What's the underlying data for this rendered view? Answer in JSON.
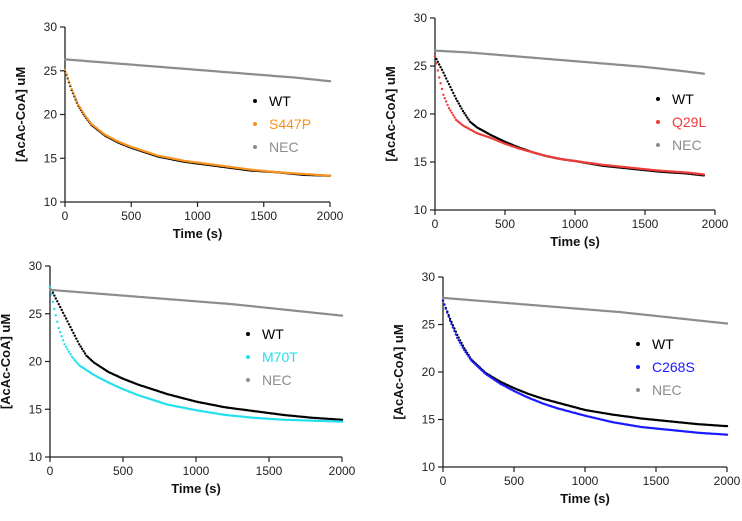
{
  "chart_data": [
    {
      "type": "scatter",
      "xlabel": "Time (s)",
      "ylabel": "[AcAc-CoA] uM",
      "xlim": [
        0,
        2000
      ],
      "ylim": [
        10,
        30
      ],
      "xticks": [
        0,
        500,
        1000,
        1500,
        2000
      ],
      "yticks": [
        10,
        15,
        20,
        25,
        30
      ],
      "legend": "right",
      "series": [
        {
          "name": "WT",
          "color": "#000000",
          "points": [
            [
              0,
              25.0
            ],
            [
              50,
              22.8
            ],
            [
              100,
              21.0
            ],
            [
              150,
              19.8
            ],
            [
              200,
              18.8
            ],
            [
              300,
              17.6
            ],
            [
              400,
              16.8
            ],
            [
              500,
              16.2
            ],
            [
              600,
              15.7
            ],
            [
              700,
              15.2
            ],
            [
              800,
              14.9
            ],
            [
              900,
              14.6
            ],
            [
              1000,
              14.4
            ],
            [
              1200,
              14.0
            ],
            [
              1400,
              13.6
            ],
            [
              1600,
              13.4
            ],
            [
              1800,
              13.1
            ],
            [
              2000,
              13.0
            ]
          ]
        },
        {
          "name": "S447P",
          "color": "#f7931e",
          "points": [
            [
              0,
              25.1
            ],
            [
              50,
              22.9
            ],
            [
              100,
              21.1
            ],
            [
              150,
              19.9
            ],
            [
              200,
              18.9
            ],
            [
              300,
              17.7
            ],
            [
              400,
              16.9
            ],
            [
              500,
              16.3
            ],
            [
              600,
              15.8
            ],
            [
              700,
              15.3
            ],
            [
              800,
              15.0
            ],
            [
              900,
              14.7
            ],
            [
              1000,
              14.5
            ],
            [
              1200,
              14.1
            ],
            [
              1400,
              13.7
            ],
            [
              1600,
              13.4
            ],
            [
              1800,
              13.2
            ],
            [
              2000,
              13.0
            ]
          ]
        },
        {
          "name": "NEC",
          "color": "#8c8c8c",
          "points": [
            [
              0,
              26.3
            ],
            [
              250,
              26.0
            ],
            [
              500,
              25.7
            ],
            [
              750,
              25.4
            ],
            [
              1000,
              25.1
            ],
            [
              1250,
              24.8
            ],
            [
              1500,
              24.5
            ],
            [
              1750,
              24.2
            ],
            [
              2000,
              23.8
            ]
          ]
        }
      ]
    },
    {
      "type": "scatter",
      "xlabel": "Time (s)",
      "ylabel": "[AcAc-CoA] uM",
      "xlim": [
        0,
        2000
      ],
      "ylim": [
        10,
        30
      ],
      "xticks": [
        0,
        500,
        1000,
        1500,
        2000
      ],
      "yticks": [
        10,
        15,
        20,
        25,
        30
      ],
      "legend": "right",
      "series": [
        {
          "name": "WT",
          "color": "#000000",
          "points": [
            [
              0,
              26.0
            ],
            [
              50,
              24.6
            ],
            [
              100,
              23.1
            ],
            [
              150,
              21.6
            ],
            [
              200,
              20.3
            ],
            [
              250,
              19.2
            ],
            [
              300,
              18.6
            ],
            [
              400,
              17.8
            ],
            [
              500,
              17.1
            ],
            [
              600,
              16.5
            ],
            [
              700,
              16.0
            ],
            [
              800,
              15.6
            ],
            [
              900,
              15.3
            ],
            [
              1000,
              15.1
            ],
            [
              1200,
              14.6
            ],
            [
              1400,
              14.3
            ],
            [
              1600,
              14.0
            ],
            [
              1800,
              13.8
            ],
            [
              1920,
              13.6
            ]
          ]
        },
        {
          "name": "Q29L",
          "color": "#ef3b3b",
          "points": [
            [
              0,
              26.0
            ],
            [
              30,
              23.8
            ],
            [
              60,
              22.0
            ],
            [
              100,
              20.6
            ],
            [
              150,
              19.4
            ],
            [
              200,
              18.8
            ],
            [
              300,
              18.0
            ],
            [
              400,
              17.5
            ],
            [
              500,
              16.9
            ],
            [
              600,
              16.4
            ],
            [
              700,
              16.0
            ],
            [
              800,
              15.6
            ],
            [
              900,
              15.3
            ],
            [
              1000,
              15.1
            ],
            [
              1200,
              14.7
            ],
            [
              1400,
              14.4
            ],
            [
              1600,
              14.1
            ],
            [
              1800,
              13.9
            ],
            [
              1920,
              13.7
            ]
          ]
        },
        {
          "name": "NEC",
          "color": "#8c8c8c",
          "points": [
            [
              0,
              26.6
            ],
            [
              250,
              26.4
            ],
            [
              500,
              26.1
            ],
            [
              750,
              25.8
            ],
            [
              1000,
              25.5
            ],
            [
              1250,
              25.2
            ],
            [
              1500,
              24.9
            ],
            [
              1750,
              24.5
            ],
            [
              1920,
              24.2
            ]
          ]
        }
      ]
    },
    {
      "type": "scatter",
      "xlabel": "Time (s)",
      "ylabel": "[AcAc-CoA] uM",
      "xlim": [
        0,
        2000
      ],
      "ylim": [
        10,
        30
      ],
      "xticks": [
        0,
        500,
        1000,
        1500,
        2000
      ],
      "yticks": [
        10,
        15,
        20,
        25,
        30
      ],
      "legend": "right",
      "series": [
        {
          "name": "WT",
          "color": "#000000",
          "points": [
            [
              0,
              27.8
            ],
            [
              50,
              26.3
            ],
            [
              100,
              24.8
            ],
            [
              150,
              23.3
            ],
            [
              200,
              21.8
            ],
            [
              250,
              20.6
            ],
            [
              300,
              19.9
            ],
            [
              400,
              18.9
            ],
            [
              500,
              18.2
            ],
            [
              600,
              17.6
            ],
            [
              700,
              17.1
            ],
            [
              800,
              16.6
            ],
            [
              900,
              16.2
            ],
            [
              1000,
              15.8
            ],
            [
              1200,
              15.2
            ],
            [
              1400,
              14.8
            ],
            [
              1600,
              14.4
            ],
            [
              1800,
              14.1
            ],
            [
              2000,
              13.9
            ]
          ]
        },
        {
          "name": "M70T",
          "color": "#22e0ee",
          "points": [
            [
              0,
              27.8
            ],
            [
              30,
              25.5
            ],
            [
              60,
              23.5
            ],
            [
              100,
              21.8
            ],
            [
              150,
              20.5
            ],
            [
              200,
              19.6
            ],
            [
              300,
              18.6
            ],
            [
              400,
              17.8
            ],
            [
              500,
              17.1
            ],
            [
              600,
              16.5
            ],
            [
              700,
              16.0
            ],
            [
              800,
              15.5
            ],
            [
              900,
              15.2
            ],
            [
              1000,
              14.9
            ],
            [
              1200,
              14.4
            ],
            [
              1400,
              14.1
            ],
            [
              1600,
              13.9
            ],
            [
              1800,
              13.8
            ],
            [
              2000,
              13.7
            ]
          ]
        },
        {
          "name": "NEC",
          "color": "#8c8c8c",
          "points": [
            [
              0,
              27.5
            ],
            [
              250,
              27.2
            ],
            [
              500,
              26.9
            ],
            [
              750,
              26.6
            ],
            [
              1000,
              26.3
            ],
            [
              1250,
              26.0
            ],
            [
              1500,
              25.6
            ],
            [
              1750,
              25.2
            ],
            [
              2000,
              24.8
            ]
          ]
        }
      ]
    },
    {
      "type": "scatter",
      "xlabel": "Time (s)",
      "ylabel": "[AcAc-CoA] uM",
      "xlim": [
        0,
        2000
      ],
      "ylim": [
        10,
        30
      ],
      "xticks": [
        0,
        500,
        1000,
        1500,
        2000
      ],
      "yticks": [
        10,
        15,
        20,
        25,
        30
      ],
      "legend": "right",
      "series": [
        {
          "name": "WT",
          "color": "#000000",
          "points": [
            [
              0,
              27.5
            ],
            [
              50,
              25.6
            ],
            [
              100,
              23.9
            ],
            [
              150,
              22.5
            ],
            [
              200,
              21.3
            ],
            [
              300,
              19.9
            ],
            [
              400,
              19.0
            ],
            [
              500,
              18.3
            ],
            [
              600,
              17.7
            ],
            [
              700,
              17.2
            ],
            [
              800,
              16.8
            ],
            [
              900,
              16.4
            ],
            [
              1000,
              16.0
            ],
            [
              1200,
              15.5
            ],
            [
              1400,
              15.1
            ],
            [
              1600,
              14.8
            ],
            [
              1800,
              14.5
            ],
            [
              2000,
              14.3
            ]
          ]
        },
        {
          "name": "C268S",
          "color": "#1a1aff",
          "points": [
            [
              0,
              27.5
            ],
            [
              50,
              25.4
            ],
            [
              100,
              23.6
            ],
            [
              150,
              22.3
            ],
            [
              200,
              21.2
            ],
            [
              300,
              19.8
            ],
            [
              400,
              18.8
            ],
            [
              500,
              18.0
            ],
            [
              600,
              17.3
            ],
            [
              700,
              16.7
            ],
            [
              800,
              16.2
            ],
            [
              900,
              15.8
            ],
            [
              1000,
              15.4
            ],
            [
              1200,
              14.7
            ],
            [
              1400,
              14.2
            ],
            [
              1600,
              13.9
            ],
            [
              1800,
              13.6
            ],
            [
              2000,
              13.4
            ]
          ]
        },
        {
          "name": "NEC",
          "color": "#8c8c8c",
          "points": [
            [
              0,
              27.8
            ],
            [
              250,
              27.5
            ],
            [
              500,
              27.2
            ],
            [
              750,
              26.9
            ],
            [
              1000,
              26.6
            ],
            [
              1250,
              26.3
            ],
            [
              1500,
              25.9
            ],
            [
              1750,
              25.5
            ],
            [
              2000,
              25.1
            ]
          ]
        }
      ]
    }
  ]
}
